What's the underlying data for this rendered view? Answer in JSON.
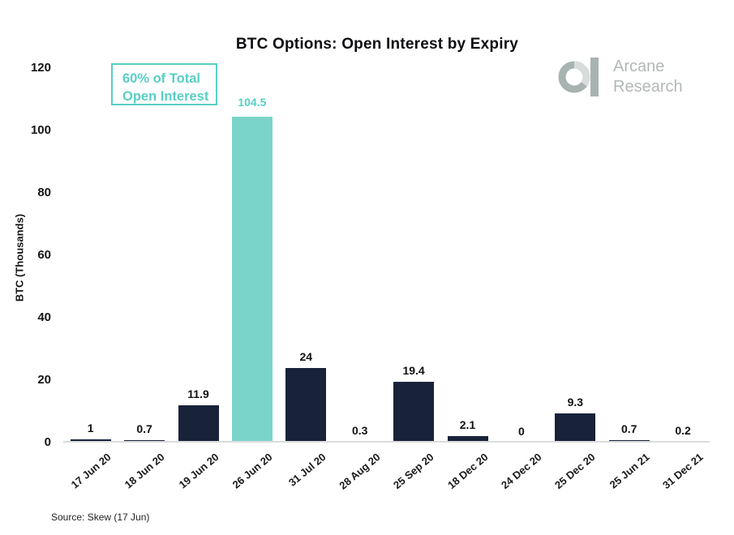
{
  "title": "BTC Options: Open Interest by Expiry",
  "logo": {
    "line1": "Arcane",
    "line2": "Research"
  },
  "annotation": {
    "line1": "60% of Total",
    "line2": "Open Interest"
  },
  "source": "Source: Skew (17 Jun)",
  "colors": {
    "bar": "#18233A",
    "highlight_bar": "#7BD4CA",
    "accent_text": "#59CFC4",
    "axis_line": "#DCDCDC",
    "logo_mark": "#A7B3B1",
    "logo_mark_light": "#D8DDDC",
    "logo_text": "#B3B8B6"
  },
  "chart_data": {
    "type": "bar",
    "title": "BTC Options: Open Interest by Expiry",
    "xlabel": "",
    "ylabel": "BTC (Thousands)",
    "categories": [
      "17 Jun 20",
      "18 Jun 20",
      "19 Jun 20",
      "26 Jun 20",
      "31 Jul 20",
      "28 Aug 20",
      "25 Sep 20",
      "18 Dec 20",
      "24 Dec 20",
      "25 Dec 20",
      "25 Jun 21",
      "31 Dec 21"
    ],
    "values": [
      1,
      0.7,
      11.9,
      104.5,
      24,
      0.3,
      19.4,
      2.1,
      0,
      9.3,
      0.7,
      0.2
    ],
    "value_labels": [
      "1",
      "0.7",
      "11.9",
      "104.5",
      "24",
      "0.3",
      "19.4",
      "2.1",
      "0",
      "9.3",
      "0.7",
      "0.2"
    ],
    "highlight_index": 3,
    "highlight_annotation": "60% of Total Open Interest",
    "yticks": [
      0,
      20,
      40,
      60,
      80,
      100,
      120
    ],
    "ylim": [
      0,
      120
    ],
    "grid": false,
    "legend": false
  }
}
